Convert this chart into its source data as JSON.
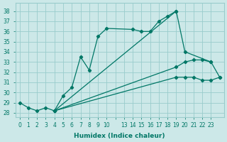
{
  "xlabel": "Humidex (Indice chaleur)",
  "background_color": "#cce8e8",
  "grid_color": "#99cccc",
  "line_color": "#007766",
  "xlim": [
    -0.5,
    23.5
  ],
  "ylim": [
    27.6,
    38.8
  ],
  "yticks": [
    28,
    29,
    30,
    31,
    32,
    33,
    34,
    35,
    36,
    37,
    38
  ],
  "xtick_labels": [
    "0",
    "1",
    "2",
    "3",
    "4",
    "5",
    "6",
    "7",
    "8",
    "9",
    "10",
    "",
    "13",
    "14",
    "15",
    "16",
    "17",
    "18",
    "19",
    "20",
    "21",
    "22",
    "23"
  ],
  "xtick_positions": [
    0,
    1,
    2,
    3,
    4,
    5,
    6,
    7,
    8,
    9,
    10,
    11,
    12,
    13,
    14,
    15,
    16,
    17,
    18,
    19,
    20,
    21,
    22
  ],
  "lines": [
    {
      "x": [
        0,
        1,
        2,
        3,
        4,
        5,
        6,
        7,
        8,
        9,
        10,
        13,
        14,
        15,
        16,
        17,
        18
      ],
      "y": [
        29,
        28.5,
        28.2,
        28.5,
        28.2,
        29.7,
        30.5,
        33.5,
        32.2,
        35.5,
        36.3,
        36.2,
        36.0,
        36.0,
        37.0,
        37.5,
        38.0
      ]
    },
    {
      "x": [
        4,
        18,
        19,
        22
      ],
      "y": [
        28.2,
        38.0,
        34.0,
        33.0
      ]
    },
    {
      "x": [
        4,
        18,
        19,
        20,
        21,
        22,
        23
      ],
      "y": [
        28.2,
        32.5,
        33.0,
        33.2,
        33.2,
        33.0,
        31.5
      ]
    },
    {
      "x": [
        4,
        18,
        19,
        20,
        21,
        22,
        23
      ],
      "y": [
        28.2,
        31.5,
        31.5,
        31.5,
        31.2,
        31.2,
        31.5
      ]
    }
  ]
}
